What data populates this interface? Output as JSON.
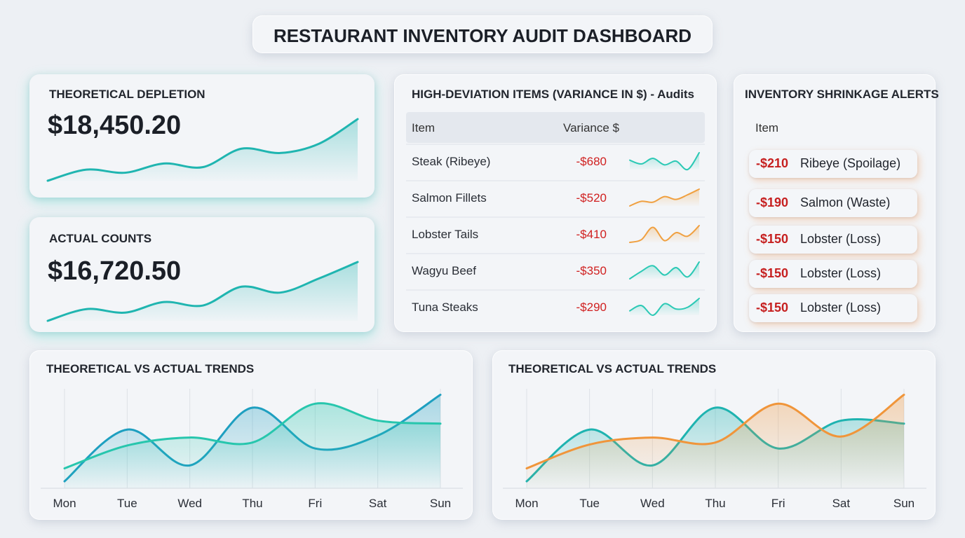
{
  "header": {
    "title": "RESTAURANT INVENTORY AUDIT DASHBOARD"
  },
  "kpis": [
    {
      "label": "THEORETICAL DEPLETION",
      "value": "$18,450.20",
      "trend": {
        "type": "line",
        "color": "#1fb5b0",
        "values": [
          0,
          18,
          13,
          28,
          22,
          52,
          45,
          60,
          100
        ]
      }
    },
    {
      "label": "ACTUAL COUNTS",
      "value": "$16,720.50",
      "trend": {
        "type": "line",
        "color": "#1fb5b0",
        "values": [
          0,
          20,
          14,
          32,
          26,
          58,
          48,
          72,
          100
        ]
      }
    }
  ],
  "variance_table": {
    "title": "HIGH-DEVIATION ITEMS (VARIANCE IN $) - Audits",
    "columns": [
      "Item",
      "Variance $"
    ],
    "rows": [
      {
        "item": "Steak (Ribeye)",
        "variance": "-$680",
        "trend": {
          "type": "line",
          "color": "#2cc9b5",
          "values": [
            60,
            40,
            70,
            35,
            55,
            10,
            100
          ]
        }
      },
      {
        "item": "Salmon Fillets",
        "variance": "-$520",
        "trend": {
          "type": "line",
          "color": "#f0a040",
          "values": [
            10,
            35,
            30,
            60,
            45,
            70,
            100
          ]
        }
      },
      {
        "item": "Lobster Tails",
        "variance": "-$410",
        "trend": {
          "type": "line",
          "color": "#f0a040",
          "values": [
            5,
            20,
            90,
            15,
            60,
            40,
            100
          ]
        }
      },
      {
        "item": "Wagyu Beef",
        "variance": "-$350",
        "trend": {
          "type": "line",
          "color": "#2cc9b5",
          "values": [
            10,
            50,
            80,
            30,
            70,
            20,
            100
          ]
        }
      },
      {
        "item": "Tuna Steaks",
        "variance": "-$290",
        "trend": {
          "type": "line",
          "color": "#2cc9b5",
          "values": [
            30,
            60,
            5,
            70,
            40,
            50,
            100
          ]
        }
      }
    ]
  },
  "alerts": {
    "title": "INVENTORY SHRINKAGE ALERTS",
    "column": "Item",
    "items": [
      {
        "amount": "-$210",
        "label": "Ribeye (Spoilage)"
      },
      {
        "amount": "-$190",
        "label": "Salmon (Waste)"
      },
      {
        "amount": "-$150",
        "label": "Lobster (Loss)"
      },
      {
        "amount": "-$150",
        "label": "Lobster (Loss)"
      },
      {
        "amount": "-$150",
        "label": "Lobster (Loss)"
      }
    ]
  },
  "trends": [
    {
      "type": "line",
      "title": "THEORETICAL VS ACTUAL TRENDS",
      "categories": [
        "Mon",
        "Tue",
        "Wed",
        "Thu",
        "Fri",
        "Sat",
        "Sun"
      ],
      "ylim": [
        0,
        100
      ],
      "series": [
        {
          "color": "#1e9fc0",
          "values": [
            7,
            59,
            23,
            81,
            40,
            53,
            94
          ]
        },
        {
          "color": "#27c6ad",
          "values": [
            20,
            43,
            51,
            46,
            85,
            68,
            65
          ]
        }
      ]
    },
    {
      "type": "line",
      "title": "THEORETICAL VS ACTUAL TRENDS",
      "categories": [
        "Mon",
        "Tue",
        "Wed",
        "Thu",
        "Fri",
        "Sat",
        "Sun"
      ],
      "ylim": [
        0,
        100
      ],
      "series": [
        {
          "color": "#1eb3b0",
          "values": [
            7,
            59,
            23,
            81,
            40,
            68,
            65
          ]
        },
        {
          "color": "#f0953a",
          "values": [
            20,
            44,
            51,
            46,
            85,
            52,
            94
          ]
        }
      ]
    }
  ]
}
